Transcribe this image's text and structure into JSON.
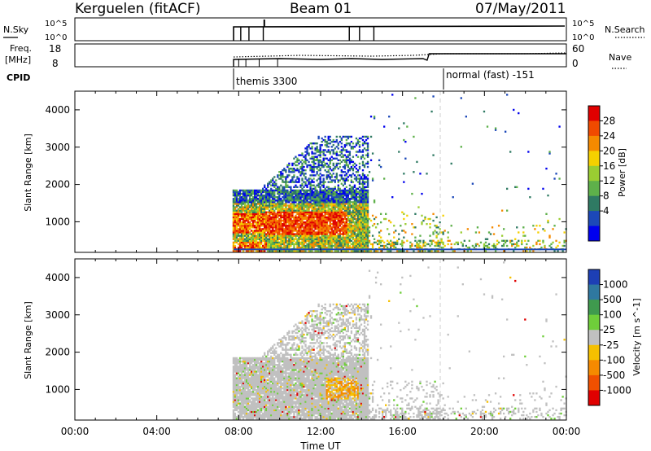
{
  "header": {
    "station": "Kerguelen (fitACF)",
    "beam": "Beam 01",
    "date": "07/May/2011"
  },
  "top_panels": {
    "nsky_label": "N.Sky",
    "nsky_ticks": [
      "10^5",
      "10^0"
    ],
    "nsearch_label": "N.Search",
    "nsearch_ticks": [
      "10^5",
      "10^0"
    ],
    "freq_label_line1": "Freq.",
    "freq_label_line2": "[MHz]",
    "freq_ticks": [
      "18",
      "8"
    ],
    "nave_label": "Nave",
    "nave_ticks": [
      "60",
      "0"
    ],
    "cpid_label": "CPID",
    "cpid_modes": [
      {
        "name": "themis 3300",
        "start_hour": 7.75
      },
      {
        "name": "normal (fast) -151",
        "start_hour": 18.0
      }
    ]
  },
  "chart_data": [
    {
      "type": "heatmap",
      "panel": "power",
      "ylabel": "Slant Range [km]",
      "y_ticks": [
        1000,
        2000,
        3000,
        4000
      ],
      "ylim": [
        180,
        4500
      ],
      "x_ticks": [
        "00:00",
        "04:00",
        "08:00",
        "12:00",
        "16:00",
        "20:00",
        "00:00"
      ],
      "xlim_hours": [
        0,
        24
      ],
      "colorbar_label": "Power [dB]",
      "colorbar_ticks": [
        "28",
        "24",
        "20",
        "16",
        "12",
        "8",
        "4"
      ],
      "colors": [
        "#0000ee",
        "#1c48b8",
        "#2f7a63",
        "#5eb04a",
        "#9acd32",
        "#f5d000",
        "#f58a00",
        "#f04a00",
        "#e00000"
      ],
      "data_regions": [
        {
          "hours": [
            7.7,
            14.3
          ],
          "range_km": [
            180,
            1900
          ],
          "level": "mixed"
        },
        {
          "hours": [
            9.5,
            13.2
          ],
          "range_km": [
            650,
            1300
          ],
          "level": "high"
        },
        {
          "hours": [
            14.6,
            18.0
          ],
          "range_km": [
            180,
            1200
          ],
          "level": "low"
        },
        {
          "hours": [
            18.0,
            24.0
          ],
          "range_km": [
            180,
            700
          ],
          "level": "low-scattered"
        }
      ]
    },
    {
      "type": "heatmap",
      "panel": "velocity",
      "ylabel": "Slant Range [km]",
      "y_ticks": [
        1000,
        2000,
        3000,
        4000
      ],
      "ylim": [
        180,
        4500
      ],
      "x_ticks": [
        "00:00",
        "04:00",
        "08:00",
        "12:00",
        "16:00",
        "20:00",
        "00:00"
      ],
      "xlim_hours": [
        0,
        24
      ],
      "xlabel": "Time UT",
      "colorbar_label": "Velocity [m s^-1]",
      "colorbar_ticks": [
        "1000",
        "500",
        "100",
        "25",
        "-25",
        "-100",
        "-500",
        "-1000"
      ],
      "colors": [
        "#1d3fb5",
        "#2f78a0",
        "#3f9a4e",
        "#6fce3a",
        "#c0c0c0",
        "#f5c000",
        "#f58a00",
        "#f05000",
        "#e00000"
      ],
      "data_regions": [
        {
          "hours": [
            7.7,
            14.3
          ],
          "range_km": [
            180,
            1900
          ],
          "level": "near-zero"
        },
        {
          "hours": [
            12.0,
            13.8
          ],
          "range_km": [
            700,
            1300
          ],
          "level": "negative"
        },
        {
          "hours": [
            14.6,
            18.0
          ],
          "range_km": [
            180,
            1200
          ],
          "level": "mixed"
        },
        {
          "hours": [
            18.0,
            24.0
          ],
          "range_km": [
            180,
            700
          ],
          "level": "scattered"
        }
      ]
    }
  ]
}
